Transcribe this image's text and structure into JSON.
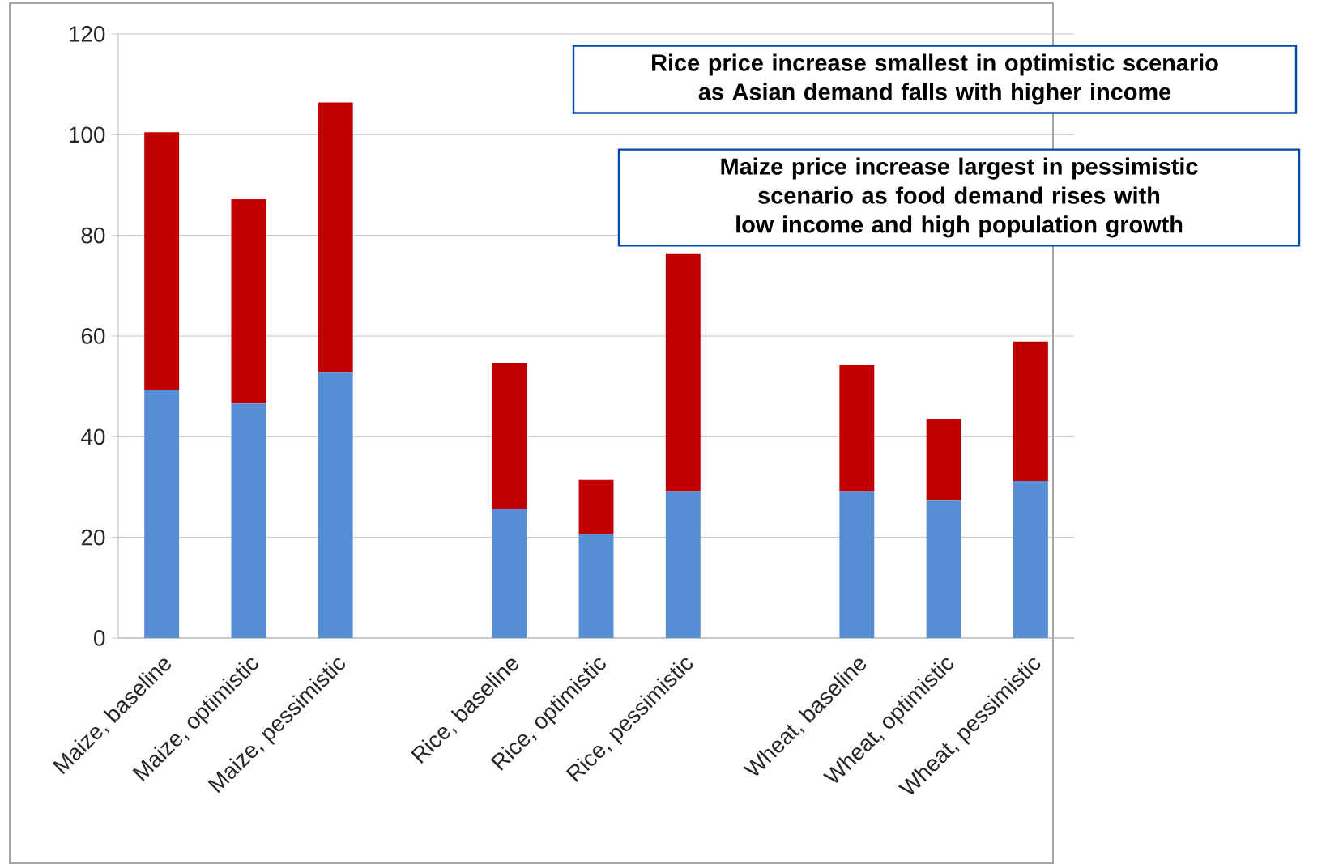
{
  "chart_data": {
    "type": "bar",
    "stacked": true,
    "categories": [
      "Maize, baseline",
      "Maize, optimistic",
      "Maize, pessimistic",
      null,
      "Rice, baseline",
      "Rice, optimistic",
      "Rice, pessimistic",
      null,
      "Wheat, baseline",
      "Wheat, optimistic",
      "Wheat, pessimistic"
    ],
    "series": [
      {
        "color": "#558ed5",
        "values": [
          49.2,
          46.6,
          52.7,
          null,
          25.7,
          20.6,
          29.2,
          null,
          29.2,
          27.3,
          31.2
        ]
      },
      {
        "color": "#c00000",
        "values": [
          51.3,
          40.6,
          53.7,
          null,
          29.0,
          10.8,
          47.1,
          null,
          25.0,
          16.2,
          27.7
        ]
      }
    ],
    "ylim": [
      0,
      120
    ],
    "yticks": [
      0,
      20,
      40,
      60,
      80,
      100,
      120
    ],
    "grid": "y",
    "annotations": [
      "Rice price increase smallest in optimistic scenario as Asian demand falls with higher income",
      "Maize price increase largest in pessimistic scenario as food demand rises with low income and high population growth"
    ]
  }
}
